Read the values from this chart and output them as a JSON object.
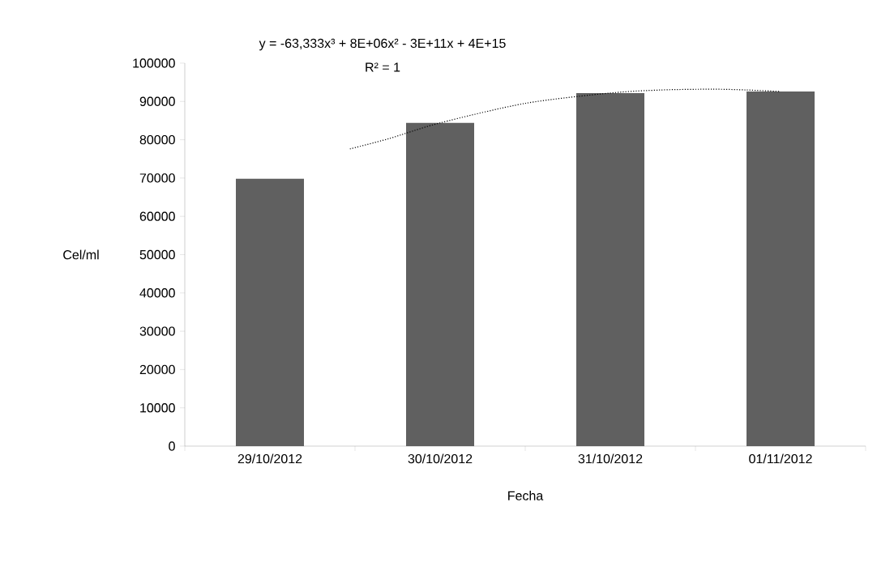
{
  "chart_data": {
    "type": "bar",
    "xlabel": "Fecha",
    "ylabel": "Cel/ml",
    "annotations": [
      "y = -63,333x³ + 8E+06x² - 3E+11x + 4E+15",
      "R² = 1"
    ],
    "x": [
      "2012-10-29",
      "2012-10-30",
      "2012-10-31",
      "2012-11-01"
    ],
    "series": [
      {
        "color": "#606060",
        "values": [
          69800,
          84400,
          92200,
          92600
        ]
      },
      {
        "type": "line",
        "color": "#000000",
        "line_style": "dotted",
        "x": [
          "2012-10-29T11:17",
          "2012-10-29T16:48",
          "2012-10-30",
          "2012-10-30T12:00",
          "2012-10-31",
          "2012-10-31T07:12",
          "2012-10-31T14:24",
          "2012-10-31T19:12",
          "2012-11-01"
        ],
        "values": [
          77600,
          80300,
          84400,
          89500,
          92200,
          93000,
          93200,
          93000,
          92600
        ]
      }
    ],
    "xlim": [
      "2012-10-28T12:00",
      "2012-11-01T12:00"
    ],
    "xticks": [
      {
        "value": "2012-10-28T12:00",
        "label": null
      },
      {
        "value": "2012-10-29",
        "label": "29/10/2012"
      },
      {
        "value": "2012-10-29T12:00",
        "label": null
      },
      {
        "value": "2012-10-30",
        "label": "30/10/2012"
      },
      {
        "value": "2012-10-30T12:00",
        "label": null
      },
      {
        "value": "2012-10-31",
        "label": "31/10/2012"
      },
      {
        "value": "2012-10-31T12:00",
        "label": null
      },
      {
        "value": "2012-11-01",
        "label": "01/11/2012"
      },
      {
        "value": "2012-11-01T12:00",
        "label": null
      }
    ],
    "ylim": [
      0,
      100000
    ],
    "yticks": [
      0,
      10000,
      20000,
      30000,
      40000,
      50000,
      60000,
      70000,
      80000,
      90000,
      100000
    ]
  }
}
